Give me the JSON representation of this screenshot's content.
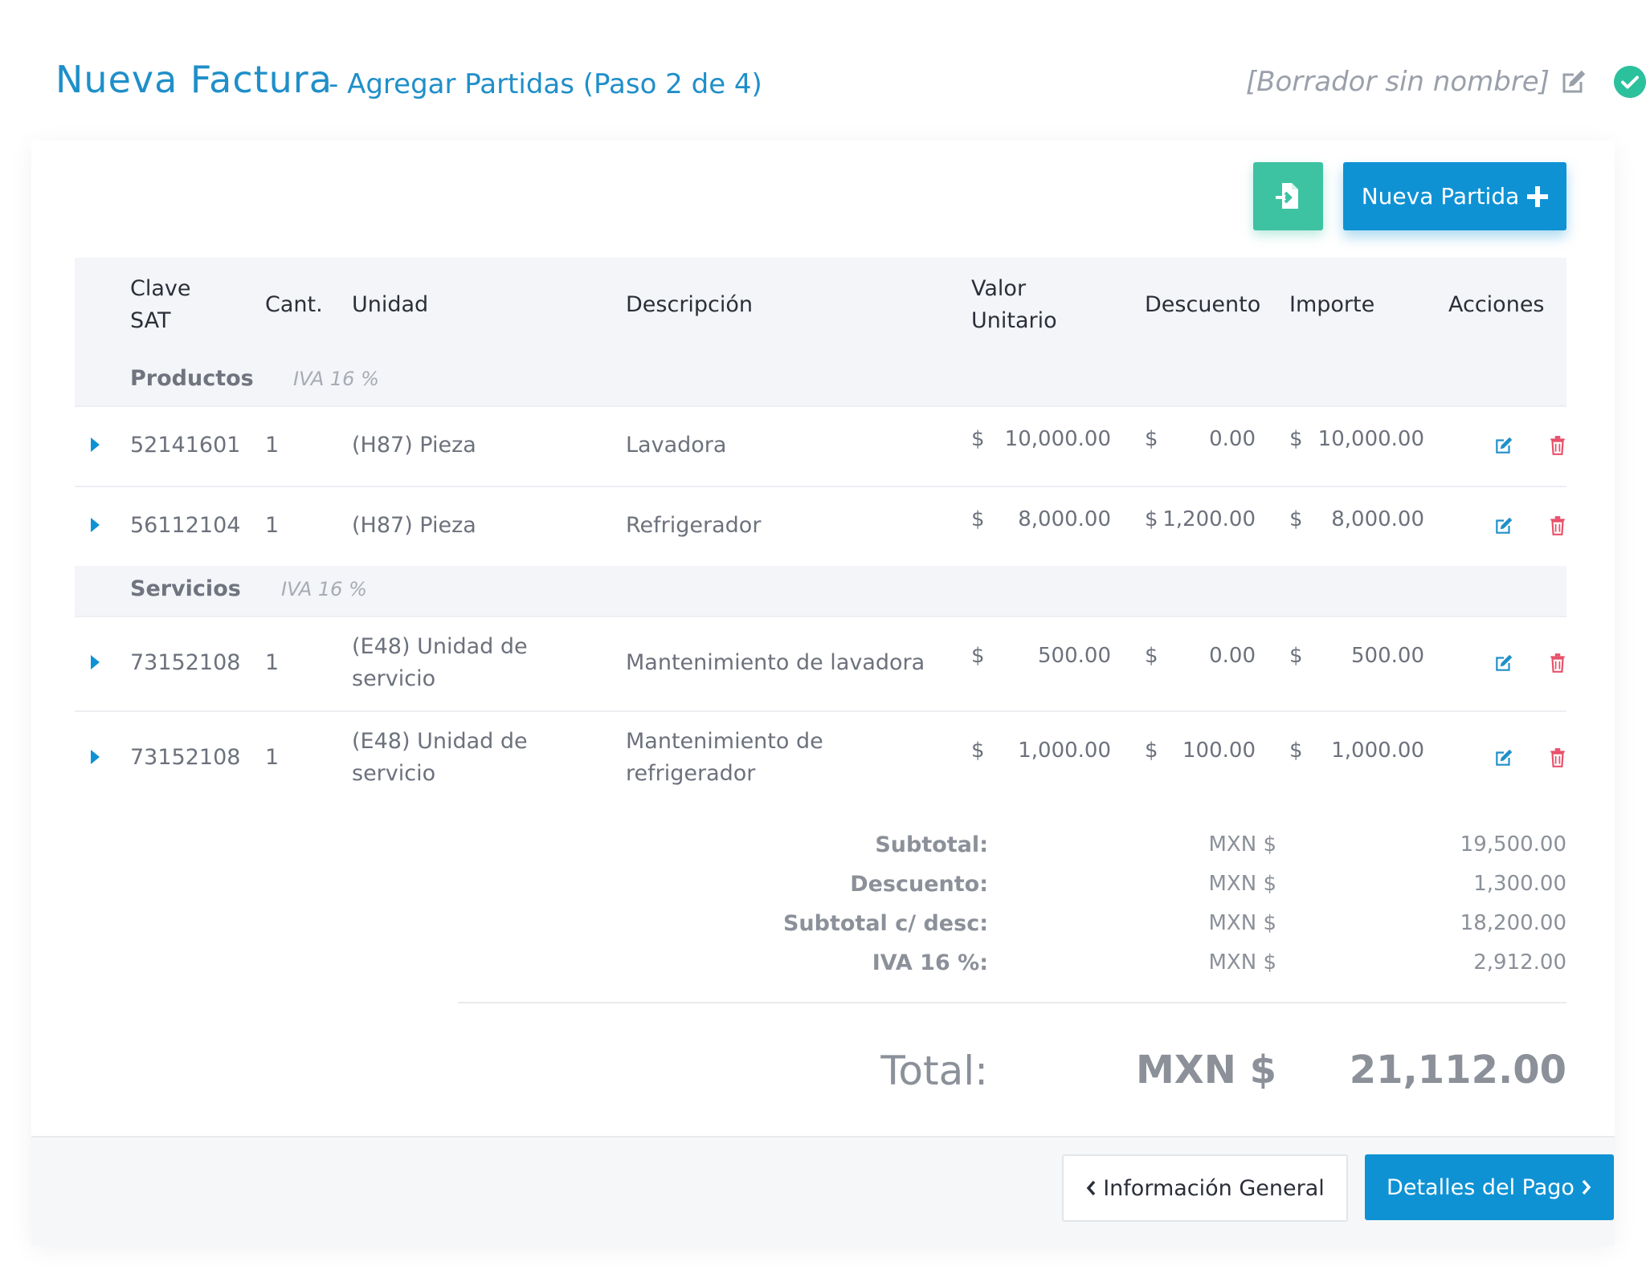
{
  "header": {
    "title": "Nueva Factura",
    "subtitle": "- Agregar Partidas (Paso 2 de 4)",
    "draft_name": "[Borrador sin nombre]"
  },
  "toolbar": {
    "import_icon": "file-import-icon",
    "new_item_label": "Nueva Partida"
  },
  "table": {
    "headers": {
      "clave_sat_1": "Clave",
      "clave_sat_2": "SAT",
      "cant": "Cant.",
      "unidad": "Unidad",
      "descripcion": "Descripción",
      "valor_unitario_1": "Valor",
      "valor_unitario_2": "Unitario",
      "descuento": "Descuento",
      "importe": "Importe",
      "acciones": "Acciones"
    },
    "groups": [
      {
        "name": "Productos",
        "iva": "IVA 16 %",
        "rows": [
          {
            "clave": "52141601",
            "cant": "1",
            "unidad_1": "(H87) Pieza",
            "unidad_2": "",
            "desc_1": "Lavadora",
            "desc_2": "",
            "cur": "$",
            "valor": "10,000.00",
            "descuento": "0.00",
            "importe": "10,000.00"
          },
          {
            "clave": "56112104",
            "cant": "1",
            "unidad_1": "(H87) Pieza",
            "unidad_2": "",
            "desc_1": "Refrigerador",
            "desc_2": "",
            "cur": "$",
            "valor": "8,000.00",
            "descuento": "1,200.00",
            "importe": "8,000.00"
          }
        ]
      },
      {
        "name": "Servicios",
        "iva": "IVA 16 %",
        "rows": [
          {
            "clave": "73152108",
            "cant": "1",
            "unidad_1": "(E48) Unidad de",
            "unidad_2": "servicio",
            "desc_1": "Mantenimiento de lavadora",
            "desc_2": "",
            "cur": "$",
            "valor": "500.00",
            "descuento": "0.00",
            "importe": "500.00"
          },
          {
            "clave": "73152108",
            "cant": "1",
            "unidad_1": "(E48) Unidad de",
            "unidad_2": "servicio",
            "desc_1": "Mantenimiento de",
            "desc_2": "refrigerador",
            "cur": "$",
            "valor": "1,000.00",
            "descuento": "100.00",
            "importe": "1,000.00"
          }
        ]
      }
    ]
  },
  "totals": {
    "currency": "MXN $",
    "lines": [
      {
        "label": "Subtotal:",
        "value": "19,500.00"
      },
      {
        "label": "Descuento:",
        "value": "1,300.00"
      },
      {
        "label": "Subtotal c/ desc:",
        "value": "18,200.00"
      },
      {
        "label": "IVA 16 %:",
        "value": "2,912.00"
      }
    ],
    "grand_label": "Total:",
    "grand_currency": "MXN $",
    "grand_value": "21,112.00"
  },
  "footer": {
    "prev_label": "Información General",
    "next_label": "Detalles del Pago"
  },
  "colors": {
    "primary": "#0f92d4",
    "success": "#2bc19d",
    "import_btn": "#3ec3a2",
    "delete": "#e8506a"
  }
}
